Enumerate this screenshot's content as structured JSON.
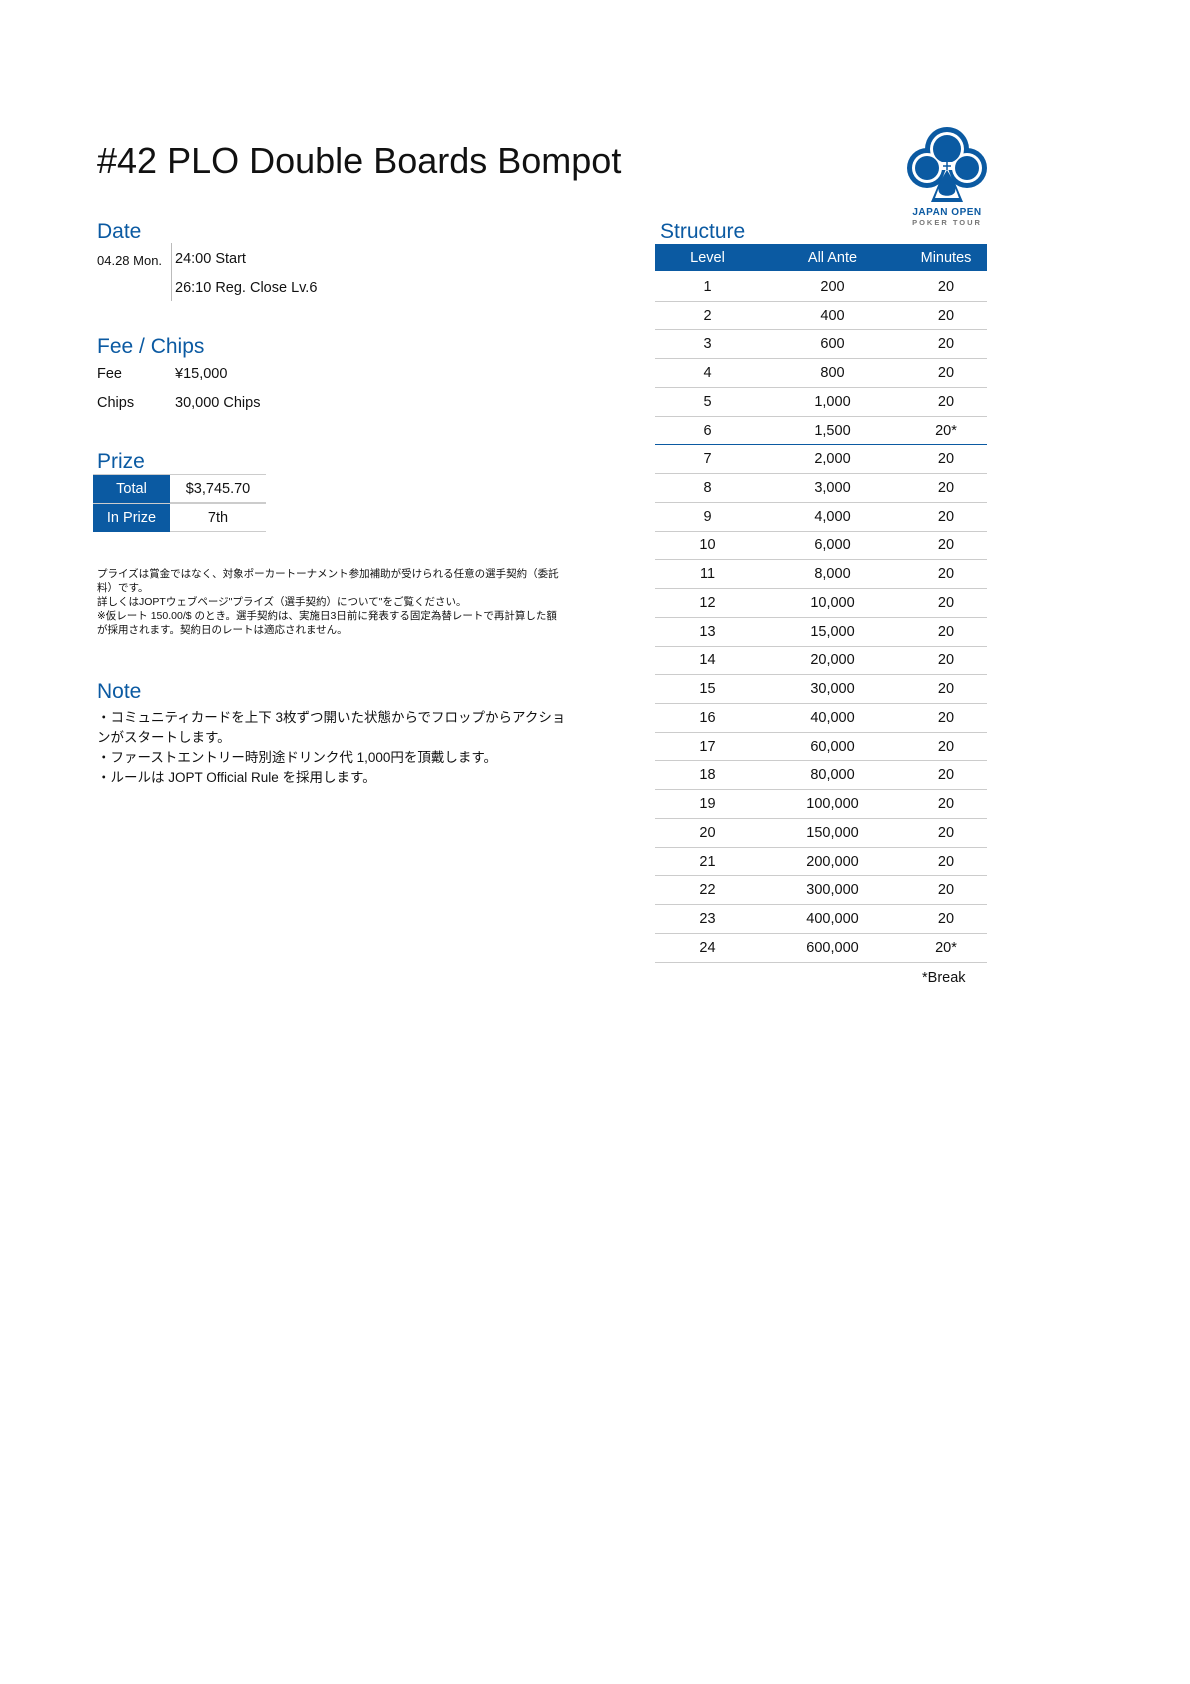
{
  "title": "#42 PLO Double Boards Bompot",
  "logo": {
    "line1": "JAPAN OPEN",
    "line2": "POKER TOUR",
    "icon": "club-icon",
    "color": "#0b5aa2"
  },
  "accent_color": "#0b5aa2",
  "date": {
    "heading": "Date",
    "day": "04.28 Mon.",
    "start": "24:00 Start",
    "reg_close": "26:10 Reg. Close Lv.6"
  },
  "fee_chips": {
    "heading": "Fee / Chips",
    "fee_label": "Fee",
    "fee_value": "¥15,000",
    "chips_label": "Chips",
    "chips_value": "30,000 Chips"
  },
  "prize": {
    "heading": "Prize",
    "total_label": "Total",
    "total_value": "$3,745.70",
    "in_prize_label": "In Prize",
    "in_prize_value": "7th",
    "disclaimer": [
      "プライズは賞金ではなく、対象ポーカートーナメント参加補助が受けられる任意の選手契約（委託料）です。",
      "詳しくはJOPTウェブページ\"プライズ（選手契約）について\"をご覧ください。",
      "※仮レート 150.00/$ のとき。選手契約は、実施日3日前に発表する固定為替レートで再計算した額が採用されます。契約日のレートは適応されません。"
    ]
  },
  "note": {
    "heading": "Note",
    "items": [
      "・コミュニティカードを上下 3枚ずつ開いた状態からでフロップからアクションがスタートします。",
      "・ファーストエントリー時別途ドリンク代  1,000円を頂戴します。",
      "・ルールは JOPT Official Rule を採用します。"
    ]
  },
  "structure": {
    "heading": "Structure",
    "columns": [
      "Level",
      "All Ante",
      "Minutes"
    ],
    "rows": [
      [
        "1",
        "200",
        "20"
      ],
      [
        "2",
        "400",
        "20"
      ],
      [
        "3",
        "600",
        "20"
      ],
      [
        "4",
        "800",
        "20"
      ],
      [
        "5",
        "1,000",
        "20"
      ],
      [
        "6",
        "1,500",
        "20*"
      ],
      [
        "7",
        "2,000",
        "20"
      ],
      [
        "8",
        "3,000",
        "20"
      ],
      [
        "9",
        "4,000",
        "20"
      ],
      [
        "10",
        "6,000",
        "20"
      ],
      [
        "11",
        "8,000",
        "20"
      ],
      [
        "12",
        "10,000",
        "20"
      ],
      [
        "13",
        "15,000",
        "20"
      ],
      [
        "14",
        "20,000",
        "20"
      ],
      [
        "15",
        "30,000",
        "20"
      ],
      [
        "16",
        "40,000",
        "20"
      ],
      [
        "17",
        "60,000",
        "20"
      ],
      [
        "18",
        "80,000",
        "20"
      ],
      [
        "19",
        "100,000",
        "20"
      ],
      [
        "20",
        "150,000",
        "20"
      ],
      [
        "21",
        "200,000",
        "20"
      ],
      [
        "22",
        "300,000",
        "20"
      ],
      [
        "23",
        "400,000",
        "20"
      ],
      [
        "24",
        "600,000",
        "20*"
      ]
    ],
    "reg_close_level": "6",
    "footnote": "*Break"
  }
}
